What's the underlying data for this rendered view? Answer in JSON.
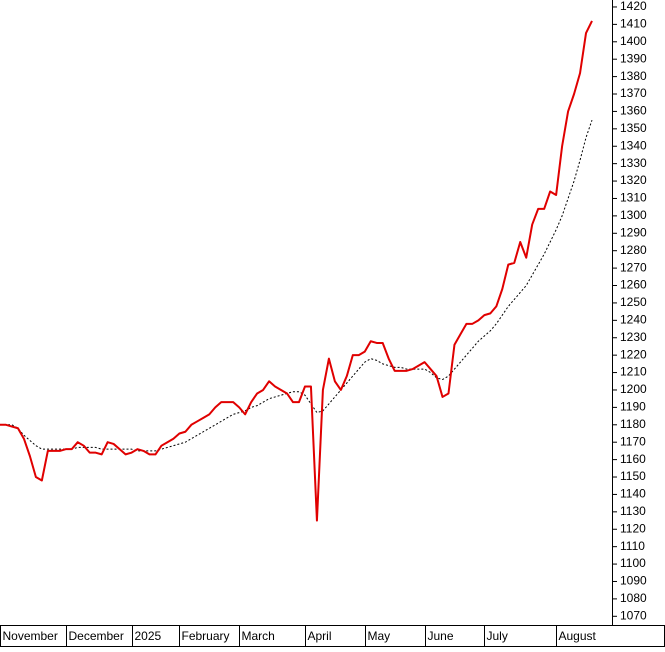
{
  "chart_data": {
    "type": "line",
    "categories": [
      "November",
      null,
      null,
      null,
      null,
      null,
      null,
      null,
      null,
      null,
      null,
      "December",
      null,
      null,
      null,
      null,
      null,
      null,
      null,
      null,
      null,
      null,
      "2025",
      null,
      null,
      null,
      null,
      null,
      null,
      null,
      "February",
      null,
      null,
      null,
      null,
      null,
      null,
      null,
      null,
      null,
      "March",
      null,
      null,
      null,
      null,
      null,
      null,
      null,
      null,
      null,
      null,
      "April",
      null,
      null,
      null,
      null,
      null,
      null,
      null,
      null,
      null,
      "May",
      null,
      null,
      null,
      null,
      null,
      null,
      null,
      null,
      null,
      "June",
      null,
      null,
      null,
      null,
      null,
      null,
      null,
      null,
      null,
      "July",
      null,
      null,
      null,
      null,
      null,
      null,
      null,
      null,
      null,
      null,
      null,
      "August",
      null,
      null,
      null,
      null,
      null,
      null
    ],
    "series": [
      {
        "color": "#e00000",
        "style": "solid",
        "values": [
          1180,
          1180,
          1179,
          1178,
          1172,
          1162,
          1150,
          1148,
          1165,
          1165,
          1165,
          1166,
          1166,
          1170,
          1168,
          1164,
          1164,
          1163,
          1170,
          1169,
          1166,
          1163,
          1164,
          1166,
          1165,
          1163,
          1163,
          1168,
          1170,
          1172,
          1175,
          1176,
          1180,
          1182,
          1184,
          1186,
          1190,
          1193,
          1193,
          1193,
          1190,
          1186,
          1193,
          1198,
          1200,
          1205,
          1202,
          1200,
          1198,
          1193,
          1193,
          1202,
          1202,
          1125,
          1200,
          1218,
          1205,
          1200,
          1208,
          1220,
          1220,
          1222,
          1228,
          1227,
          1227,
          1218,
          1211,
          1211,
          1211,
          1212,
          1214,
          1216,
          1212,
          1208,
          1196,
          1198,
          1226,
          1232,
          1238,
          1238,
          1240,
          1243,
          1244,
          1248,
          1258,
          1272,
          1273,
          1285,
          1276,
          1295,
          1304,
          1304,
          1314,
          1312,
          1340,
          1360,
          1370,
          1382,
          1405,
          1412
        ]
      },
      {
        "color": "#000000",
        "style": "dotted",
        "values": [
          1180,
          1180,
          1180,
          1178,
          1174,
          1171,
          1168,
          1166,
          1166,
          1166,
          1166,
          1166,
          1166,
          1167,
          1167,
          1167,
          1167,
          1166,
          1166,
          1166,
          1166,
          1166,
          1166,
          1165,
          1165,
          1165,
          1165,
          1166,
          1167,
          1168,
          1169,
          1170,
          1172,
          1174,
          1176,
          1178,
          1180,
          1182,
          1184,
          1186,
          1187,
          1188,
          1190,
          1191,
          1193,
          1195,
          1196,
          1197,
          1198,
          1199,
          1199,
          1197,
          1192,
          1187,
          1188,
          1192,
          1196,
          1200,
          1204,
          1208,
          1212,
          1216,
          1218,
          1217,
          1215,
          1214,
          1213,
          1213,
          1212,
          1212,
          1212,
          1212,
          1210,
          1207,
          1206,
          1208,
          1212,
          1216,
          1220,
          1224,
          1228,
          1231,
          1234,
          1238,
          1243,
          1248,
          1252,
          1256,
          1260,
          1266,
          1272,
          1278,
          1285,
          1292,
          1300,
          1310,
          1320,
          1332,
          1345,
          1355
        ]
      }
    ],
    "ylim": [
      1065,
      1424
    ],
    "yticks": [
      1070,
      1080,
      1090,
      1100,
      1110,
      1120,
      1130,
      1140,
      1150,
      1160,
      1170,
      1180,
      1190,
      1200,
      1210,
      1220,
      1230,
      1240,
      1250,
      1260,
      1270,
      1280,
      1290,
      1300,
      1310,
      1320,
      1330,
      1340,
      1350,
      1360,
      1370,
      1380,
      1390,
      1400,
      1410,
      1420
    ],
    "grid": false
  }
}
